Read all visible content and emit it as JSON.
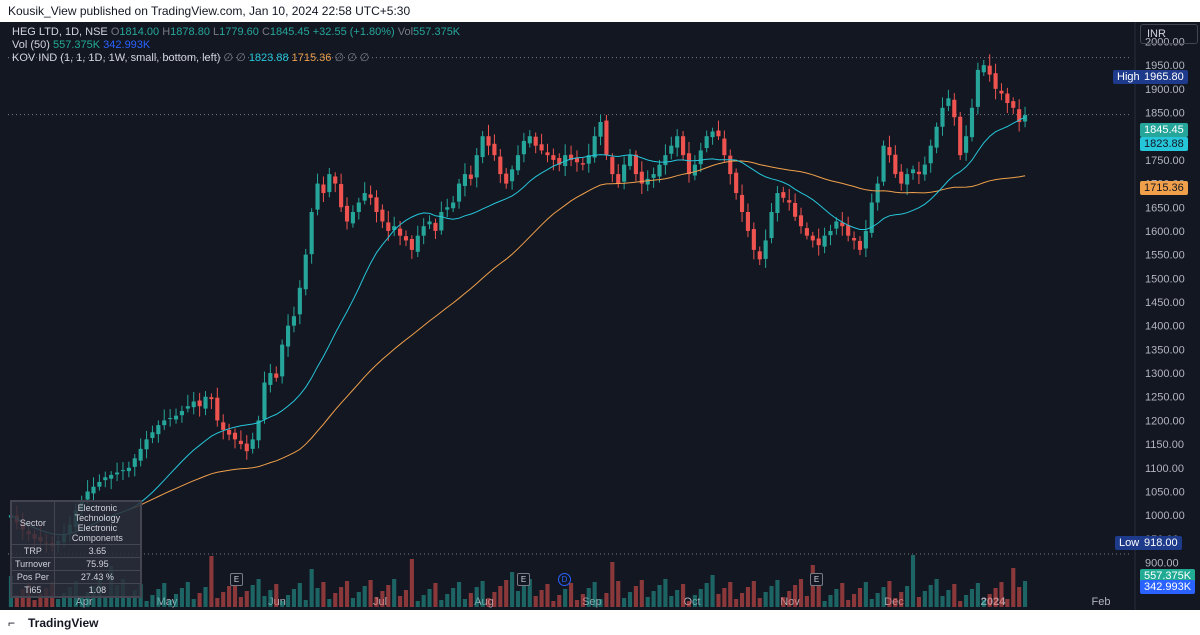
{
  "header": {
    "published": "Kousik_View published on TradingView.com, Jan 10, 2024 22:58 UTC+5:30"
  },
  "legend": {
    "symbol": "HEG LTD, 1D, NSE",
    "o_label": "O",
    "o": "1814.00",
    "h_label": "H",
    "h": "1878.80",
    "l_label": "L",
    "l": "1779.60",
    "c_label": "C",
    "c": "1845.45",
    "change": "+32.55 (+1.80%)",
    "vol_label": "Vol",
    "vol": "557.375K",
    "vol_ind": "Vol (50)",
    "vol_ind_v1": "557.375K",
    "vol_ind_v2": "342.993K",
    "kov": "KOV IND (1, 1, 1D, 1W, small, bottom, left)",
    "kov_sym1": "∅ ∅",
    "kov_v1": "1823.88",
    "kov_v2": "1715.36",
    "kov_sym2": "∅ ∅ ∅"
  },
  "currency": "INR",
  "price_tags": {
    "high_label": "High",
    "high": "1965.80",
    "last": "1845.45",
    "ma_fast": "1823.88",
    "ma_slow": "1715.36",
    "low_label": "Low",
    "low": "918.00",
    "vol1": "557.375K",
    "vol2": "342.993K"
  },
  "table": {
    "rows": [
      {
        "k": "Sector",
        "v": "Electronic Technology Electronic Components"
      },
      {
        "k": "TRP",
        "v": "3.65"
      },
      {
        "k": "Turnover",
        "v": "75.95"
      },
      {
        "k": "Pos Per",
        "v": "27.43 %"
      },
      {
        "k": "Ti65",
        "v": "1.08"
      }
    ]
  },
  "events": [
    "E",
    "E",
    "D",
    "E"
  ],
  "footer": {
    "brand": "TradingView"
  },
  "colors": {
    "up": "#26a69a",
    "down": "#ef5350",
    "ma_fast": "#26c6da",
    "ma_slow": "#f0a04b",
    "bg": "#131722"
  },
  "chart_data": {
    "type": "candlestick",
    "yaxis_ticks": [
      2000,
      1950,
      1900,
      1850,
      1800,
      1750,
      1700,
      1650,
      1600,
      1550,
      1500,
      1450,
      1400,
      1350,
      1300,
      1250,
      1200,
      1150,
      1100,
      1050,
      1000,
      950,
      900
    ],
    "xaxis_ticks": [
      "Apr",
      "May",
      "Jun",
      "Jul",
      "Aug",
      "Sep",
      "Oct",
      "Nov",
      "Dec",
      "2024",
      "Feb"
    ],
    "ylim": [
      880,
      2020
    ],
    "closes": [
      1000,
      985,
      970,
      960,
      950,
      945,
      940,
      935,
      945,
      960,
      980,
      1010,
      1030,
      1050,
      1060,
      1070,
      1080,
      1085,
      1090,
      1095,
      1100,
      1120,
      1140,
      1160,
      1175,
      1190,
      1200,
      1205,
      1210,
      1220,
      1230,
      1240,
      1230,
      1250,
      1245,
      1200,
      1180,
      1170,
      1160,
      1150,
      1135,
      1160,
      1200,
      1280,
      1300,
      1290,
      1360,
      1400,
      1420,
      1480,
      1550,
      1640,
      1700,
      1680,
      1720,
      1700,
      1650,
      1620,
      1640,
      1660,
      1680,
      1670,
      1640,
      1620,
      1600,
      1610,
      1590,
      1580,
      1560,
      1590,
      1610,
      1620,
      1600,
      1640,
      1650,
      1660,
      1700,
      1720,
      1710,
      1760,
      1800,
      1780,
      1760,
      1720,
      1700,
      1730,
      1760,
      1790,
      1800,
      1780,
      1770,
      1760,
      1750,
      1740,
      1760,
      1750,
      1745,
      1740,
      1760,
      1800,
      1830,
      1760,
      1720,
      1700,
      1740,
      1760,
      1720,
      1700,
      1710,
      1720,
      1740,
      1760,
      1780,
      1800,
      1760,
      1720,
      1740,
      1770,
      1800,
      1810,
      1800,
      1760,
      1720,
      1680,
      1640,
      1600,
      1560,
      1540,
      1580,
      1640,
      1680,
      1670,
      1660,
      1630,
      1610,
      1590,
      1580,
      1570,
      1590,
      1600,
      1620,
      1610,
      1590,
      1580,
      1560,
      1600,
      1660,
      1700,
      1780,
      1760,
      1720,
      1700,
      1720,
      1730,
      1720,
      1740,
      1780,
      1820,
      1860,
      1880,
      1840,
      1760,
      1800,
      1860,
      1940,
      1950,
      1930,
      1900,
      1890,
      1870,
      1860,
      1830,
      1845
    ]
  }
}
